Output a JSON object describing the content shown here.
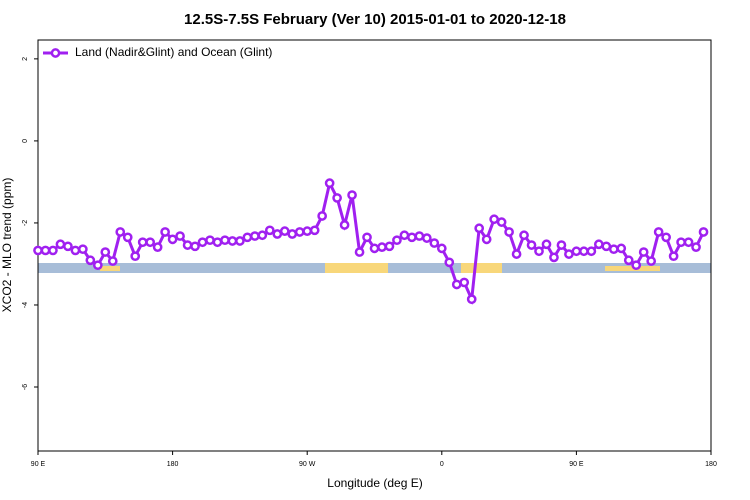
{
  "chart_data": {
    "type": "line",
    "title": "12.5S-7.5S February (Ver 10)   2015-01-01 to 2020-12-18",
    "x_label": "Longitude (deg E)",
    "y_label": "XCO2 - MLO trend (ppm)",
    "xlim": [
      90,
      540
    ],
    "xticks": [
      {
        "value": 90,
        "label": "90 E"
      },
      180,
      {
        "value": 270,
        "label": "90 W"
      },
      {
        "value": 360,
        "label": "0"
      },
      {
        "value": 450,
        "label": "90 E"
      },
      {
        "value": 540,
        "label": "180"
      }
    ],
    "ylim": [
      -7.56,
      2.46
    ],
    "yticks": [
      -6,
      -4,
      -2,
      0,
      2
    ],
    "legend": "top-left",
    "x": [
      90,
      95,
      100,
      105,
      110,
      115,
      120,
      125,
      130,
      135,
      140,
      145,
      150,
      155,
      160,
      165,
      170,
      175,
      180,
      185,
      190,
      195,
      200,
      205,
      210,
      215,
      220,
      225,
      230,
      235,
      240,
      245,
      250,
      255,
      260,
      265,
      270,
      275,
      280,
      285,
      290,
      295,
      300,
      305,
      310,
      315,
      320,
      325,
      330,
      335,
      340,
      345,
      350,
      355,
      360,
      365,
      370,
      375,
      380,
      385,
      390,
      395,
      400,
      405,
      410,
      415,
      420,
      425,
      430,
      435,
      440,
      445,
      450,
      455,
      460,
      465,
      470,
      475,
      480,
      485,
      490,
      495,
      500,
      505,
      510,
      515,
      520,
      525,
      530,
      535
    ],
    "series": [
      {
        "name": "Land (Nadir&Glint) and Ocean (Glint)",
        "color": "#a020f0",
        "values": [
          -2.67,
          -2.67,
          -2.67,
          -2.52,
          -2.57,
          -2.67,
          -2.64,
          -2.91,
          -3.03,
          -2.71,
          -2.93,
          -2.22,
          -2.35,
          -2.81,
          -2.47,
          -2.47,
          -2.59,
          -2.22,
          -2.4,
          -2.32,
          -2.54,
          -2.57,
          -2.47,
          -2.42,
          -2.47,
          -2.42,
          -2.44,
          -2.44,
          -2.35,
          -2.32,
          -2.3,
          -2.18,
          -2.27,
          -2.2,
          -2.27,
          -2.22,
          -2.2,
          -2.18,
          -1.83,
          -1.03,
          -1.39,
          -2.05,
          -1.32,
          -2.71,
          -2.35,
          -2.62,
          -2.59,
          -2.57,
          -2.42,
          -2.3,
          -2.35,
          -2.32,
          -2.37,
          -2.49,
          -2.62,
          -2.96,
          -3.5,
          -3.45,
          -3.86,
          -2.13,
          -2.4,
          -1.91,
          -1.98,
          -2.22,
          -2.76,
          -2.3,
          -2.54,
          -2.69,
          -2.52,
          -2.84,
          -2.54,
          -2.76,
          -2.69,
          -2.69,
          -2.69,
          -2.52,
          -2.57,
          -2.64,
          -2.62,
          -2.91,
          -3.03,
          -2.71,
          -2.93,
          -2.22,
          -2.35,
          -2.81,
          -2.47,
          -2.47,
          -2.59,
          -2.22
        ]
      }
    ]
  }
}
